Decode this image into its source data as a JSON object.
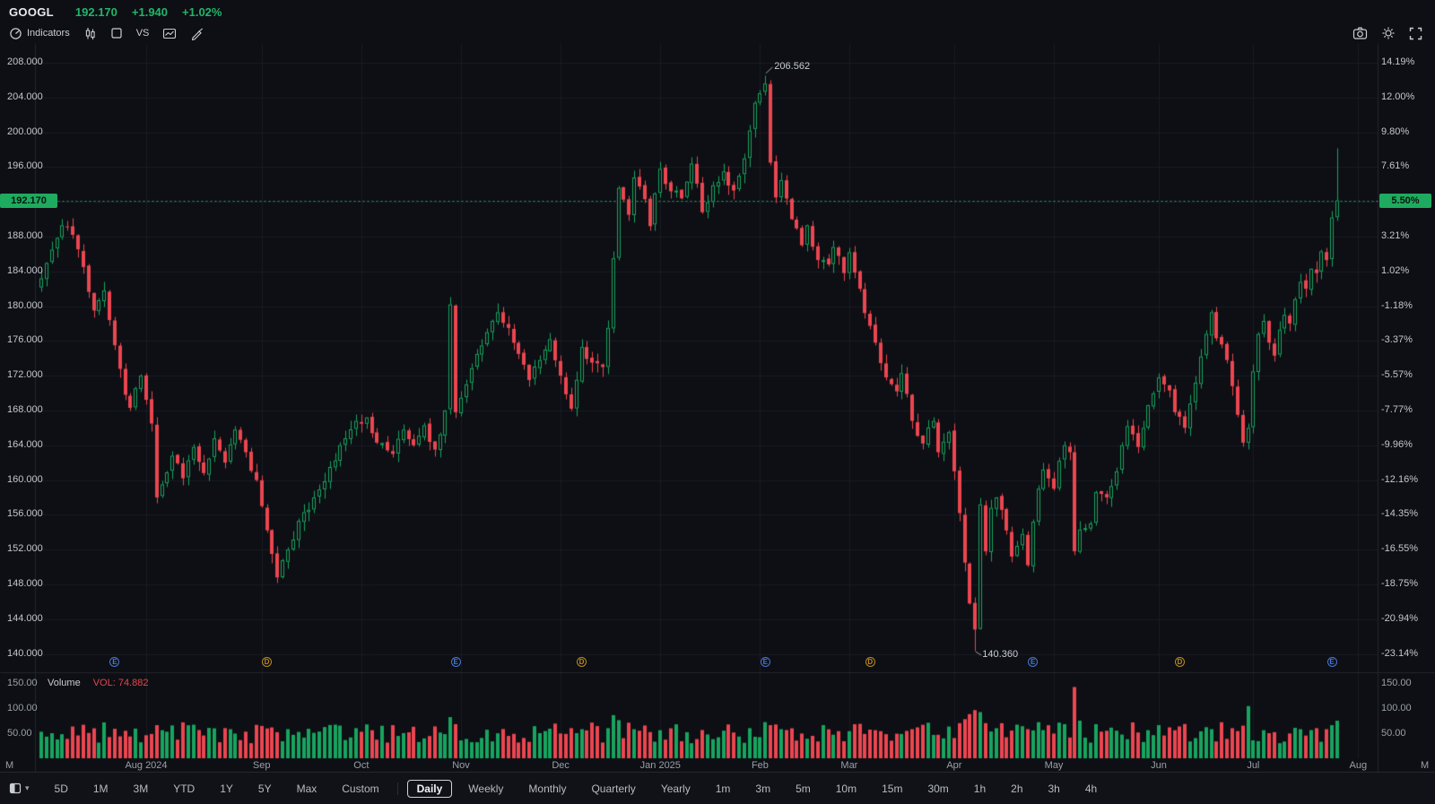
{
  "header": {
    "symbol": "GOOGL",
    "price": "192.170",
    "change": "+1.940",
    "change_percent": "+1.02%"
  },
  "toolbar": {
    "indicators_label": "Indicators",
    "vs_label": "VS",
    "icons": [
      "indicators-gauge-icon",
      "candlestick-style-icon",
      "square-layout-icon",
      "compare-vs",
      "chart-type-icon",
      "draw-pen-icon"
    ],
    "right_icons": [
      "camera-icon",
      "settings-gear-icon",
      "fullscreen-icon"
    ]
  },
  "colors": {
    "up": "#17a45f",
    "down": "#eb4650",
    "badge_bg": "#1fab5f",
    "grid": "#1a1d23",
    "boundary": "#23262d",
    "earnings_blue": "#4878d8",
    "dividend_gold": "#bd8b1c",
    "dashed_line": "#1fab5f",
    "text_green": "#22b56a",
    "vol_red": "#e8444c"
  },
  "chart_data": {
    "type": "candlestick",
    "symbol": "GOOGL",
    "timeframe": "Daily",
    "current_price": 192.17,
    "current_price_label": "192.170",
    "current_percent_label": "5.50%",
    "baseline_price_for_percent": 182.147,
    "high_annotation": "206.562",
    "low_annotation": "140.360",
    "price_ticks": [
      208,
      204,
      200,
      196,
      188,
      184,
      180,
      176,
      172,
      168,
      164,
      160,
      156,
      152,
      148,
      144,
      140
    ],
    "percent_ticks": [
      {
        "label": "14.19%",
        "price": 208
      },
      {
        "label": "12.00%",
        "price": 204
      },
      {
        "label": "9.80%",
        "price": 200
      },
      {
        "label": "7.61%",
        "price": 196
      },
      {
        "label": "3.21%",
        "price": 188
      },
      {
        "label": "1.02%",
        "price": 184
      },
      {
        "label": "-1.18%",
        "price": 180
      },
      {
        "label": "-3.37%",
        "price": 176
      },
      {
        "label": "-5.57%",
        "price": 172
      },
      {
        "label": "-7.77%",
        "price": 168
      },
      {
        "label": "-9.96%",
        "price": 164
      },
      {
        "label": "-12.16%",
        "price": 160
      },
      {
        "label": "-14.35%",
        "price": 156
      },
      {
        "label": "-16.55%",
        "price": 152
      },
      {
        "label": "-18.75%",
        "price": 148
      },
      {
        "label": "-20.94%",
        "price": 144
      },
      {
        "label": "-23.14%",
        "price": 140
      }
    ],
    "months": [
      {
        "label": "Aug 2024",
        "day": 20
      },
      {
        "label": "Sep",
        "day": 42
      },
      {
        "label": "Oct",
        "day": 61
      },
      {
        "label": "Nov",
        "day": 80
      },
      {
        "label": "Dec",
        "day": 99
      },
      {
        "label": "Jan 2025",
        "day": 118
      },
      {
        "label": "Feb",
        "day": 137
      },
      {
        "label": "Mar",
        "day": 154
      },
      {
        "label": "Apr",
        "day": 174
      },
      {
        "label": "May",
        "day": 193
      },
      {
        "label": "Jun",
        "day": 213
      },
      {
        "label": "Jul",
        "day": 231
      },
      {
        "label": "Aug",
        "day": 251
      }
    ],
    "events": [
      {
        "day": 14,
        "type": "E"
      },
      {
        "day": 43,
        "type": "D"
      },
      {
        "day": 79,
        "type": "E"
      },
      {
        "day": 103,
        "type": "D"
      },
      {
        "day": 138,
        "type": "E"
      },
      {
        "day": 158,
        "type": "D"
      },
      {
        "day": 189,
        "type": "E"
      },
      {
        "day": 217,
        "type": "D"
      },
      {
        "day": 246,
        "type": "E"
      }
    ],
    "n_days": 248,
    "first_open": 182.15,
    "close_anchors": [
      [
        0,
        183.2
      ],
      [
        2,
        186.5
      ],
      [
        4,
        189.3
      ],
      [
        6,
        188.2
      ],
      [
        8,
        184.5
      ],
      [
        10,
        179.5
      ],
      [
        12,
        181.8
      ],
      [
        14,
        175.5
      ],
      [
        16,
        169.8
      ],
      [
        17,
        168.3
      ],
      [
        19,
        172.0
      ],
      [
        21,
        166.5
      ],
      [
        22,
        158.0
      ],
      [
        23,
        159.5
      ],
      [
        25,
        162.8
      ],
      [
        27,
        160.2
      ],
      [
        29,
        163.8
      ],
      [
        31,
        160.8
      ],
      [
        33,
        164.8
      ],
      [
        35,
        162.0
      ],
      [
        37,
        165.8
      ],
      [
        39,
        163.2
      ],
      [
        41,
        160.0
      ],
      [
        42,
        157.0
      ],
      [
        44,
        151.5
      ],
      [
        45,
        148.8
      ],
      [
        47,
        152.0
      ],
      [
        49,
        155.3
      ],
      [
        52,
        158.0
      ],
      [
        55,
        161.5
      ],
      [
        58,
        164.8
      ],
      [
        60,
        166.8
      ],
      [
        62,
        167.2
      ],
      [
        64,
        164.3
      ],
      [
        67,
        163.0
      ],
      [
        69,
        165.8
      ],
      [
        71,
        164.0
      ],
      [
        73,
        166.3
      ],
      [
        75,
        163.5
      ],
      [
        77,
        168.0
      ],
      [
        78,
        180.2
      ],
      [
        79,
        167.8
      ],
      [
        81,
        171.0
      ],
      [
        83,
        174.5
      ],
      [
        85,
        177.0
      ],
      [
        87,
        179.3
      ],
      [
        89,
        177.5
      ],
      [
        91,
        174.5
      ],
      [
        93,
        171.5
      ],
      [
        95,
        173.8
      ],
      [
        97,
        176.2
      ],
      [
        99,
        172.0
      ],
      [
        101,
        168.2
      ],
      [
        103,
        175.3
      ],
      [
        105,
        173.5
      ],
      [
        107,
        173.0
      ],
      [
        108,
        177.5
      ],
      [
        109,
        185.5
      ],
      [
        110,
        193.6
      ],
      [
        112,
        190.5
      ],
      [
        113,
        194.8
      ],
      [
        115,
        192.3
      ],
      [
        116,
        189.2
      ],
      [
        118,
        195.8
      ],
      [
        120,
        193.2
      ],
      [
        122,
        192.4
      ],
      [
        124,
        196.4
      ],
      [
        126,
        190.8
      ],
      [
        128,
        193.9
      ],
      [
        130,
        195.5
      ],
      [
        132,
        193.3
      ],
      [
        134,
        197.0
      ],
      [
        135,
        200.2
      ],
      [
        136,
        203.4
      ],
      [
        138,
        205.6
      ],
      [
        139,
        196.5
      ],
      [
        140,
        192.5
      ],
      [
        141,
        194.5
      ],
      [
        143,
        190.0
      ],
      [
        145,
        187.0
      ],
      [
        146,
        189.3
      ],
      [
        148,
        185.3
      ],
      [
        150,
        184.8
      ],
      [
        151,
        186.8
      ],
      [
        153,
        183.8
      ],
      [
        154,
        186.2
      ],
      [
        156,
        182.0
      ],
      [
        157,
        179.2
      ],
      [
        159,
        175.8
      ],
      [
        161,
        171.8
      ],
      [
        163,
        170.2
      ],
      [
        164,
        172.3
      ],
      [
        166,
        166.8
      ],
      [
        168,
        164.2
      ],
      [
        170,
        166.8
      ],
      [
        171,
        163.2
      ],
      [
        173,
        165.5
      ],
      [
        174,
        161.0
      ],
      [
        175,
        156.2
      ],
      [
        176,
        150.5
      ],
      [
        177,
        145.8
      ],
      [
        178,
        142.8
      ],
      [
        179,
        157.2
      ],
      [
        180,
        151.8
      ],
      [
        181,
        156.8
      ],
      [
        182,
        158.0
      ],
      [
        184,
        154.2
      ],
      [
        185,
        151.2
      ],
      [
        187,
        153.8
      ],
      [
        188,
        150.2
      ],
      [
        189,
        155.2
      ],
      [
        190,
        159.0
      ],
      [
        191,
        161.2
      ],
      [
        193,
        159.0
      ],
      [
        194,
        162.2
      ],
      [
        195,
        164.0
      ],
      [
        196,
        163.2
      ],
      [
        197,
        151.8
      ],
      [
        198,
        154.3
      ],
      [
        200,
        155.0
      ],
      [
        201,
        158.6
      ],
      [
        203,
        158.0
      ],
      [
        205,
        161.0
      ],
      [
        206,
        164.0
      ],
      [
        207,
        166.2
      ],
      [
        209,
        163.8
      ],
      [
        210,
        166.0
      ],
      [
        211,
        168.6
      ],
      [
        213,
        171.8
      ],
      [
        215,
        170.3
      ],
      [
        216,
        167.8
      ],
      [
        218,
        166.0
      ],
      [
        219,
        168.8
      ],
      [
        220,
        171.2
      ],
      [
        222,
        176.8
      ],
      [
        223,
        179.3
      ],
      [
        224,
        176.3
      ],
      [
        226,
        173.8
      ],
      [
        227,
        170.8
      ],
      [
        228,
        167.5
      ],
      [
        229,
        164.3
      ],
      [
        230,
        166.0
      ],
      [
        231,
        172.5
      ],
      [
        232,
        176.8
      ],
      [
        233,
        178.3
      ],
      [
        234,
        175.8
      ],
      [
        235,
        174.3
      ],
      [
        236,
        177.3
      ],
      [
        237,
        179.0
      ],
      [
        238,
        178.0
      ],
      [
        239,
        180.8
      ],
      [
        240,
        182.8
      ],
      [
        241,
        182.0
      ],
      [
        242,
        184.3
      ],
      [
        243,
        183.8
      ],
      [
        244,
        186.3
      ],
      [
        245,
        185.3
      ],
      [
        246,
        190.2
      ],
      [
        247,
        192.17
      ]
    ],
    "overrides": {
      "high": {
        "day": 138,
        "value": 206.562
      },
      "low": {
        "day": 178,
        "value": 140.36
      },
      "last": {
        "open": 190.23,
        "high": 198.16,
        "low": 189.9,
        "close": 192.17
      }
    },
    "volume": {
      "header_label": "Volume",
      "vol_label": "VOL: 74.882",
      "unit": "M",
      "ticks": [
        {
          "label": "150.00",
          "value": 150
        },
        {
          "label": "100.00",
          "value": 100
        },
        {
          "label": "50.00",
          "value": 50
        }
      ],
      "base_range": [
        30,
        72
      ],
      "spikes": {
        "4": 48,
        "22": 66,
        "45": 52,
        "78": 82,
        "79": 68,
        "103": 58,
        "108": 60,
        "109": 86,
        "110": 76,
        "113": 58,
        "118": 56,
        "135": 60,
        "138": 72,
        "139": 66,
        "141": 58,
        "154": 54,
        "159": 56,
        "166": 58,
        "175": 70,
        "176": 78,
        "177": 88,
        "178": 96,
        "179": 92,
        "180": 70,
        "182": 60,
        "188": 58,
        "190": 72,
        "197": 142,
        "198": 75,
        "201": 68,
        "205": 55,
        "211": 56,
        "222": 62,
        "223": 58,
        "227": 60,
        "229": 65,
        "230": 104,
        "233": 56,
        "240": 58,
        "243": 60,
        "245": 58,
        "246": 66,
        "247": 74.882
      }
    }
  },
  "bottom_toolbar": {
    "ranges": [
      "5D",
      "1M",
      "3M",
      "YTD",
      "1Y",
      "5Y",
      "Max",
      "Custom"
    ],
    "periods": [
      "Daily",
      "Weekly",
      "Monthly",
      "Quarterly",
      "Yearly",
      "1m",
      "3m",
      "5m",
      "10m",
      "15m",
      "30m",
      "1h",
      "2h",
      "3h",
      "4h"
    ],
    "selected": "Daily"
  }
}
